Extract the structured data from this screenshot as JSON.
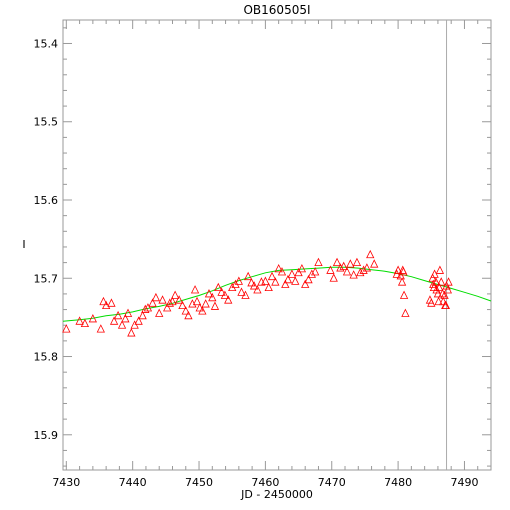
{
  "chart_data": {
    "type": "scatter",
    "title": "OB160505I",
    "xlabel": "JD - 2450000",
    "ylabel": "I",
    "xlim": [
      7429.5,
      7494
    ],
    "ylim": [
      15.945,
      15.37
    ],
    "y_inverted": true,
    "grid": false,
    "x_major_ticks": [
      7430,
      7440,
      7450,
      7460,
      7470,
      7480,
      7490
    ],
    "x_tick_labels": [
      "7430",
      "7440",
      "7450",
      "7460",
      "7470",
      "7480",
      "7490"
    ],
    "x_minor_step": 2,
    "y_major_ticks": [
      15.4,
      15.5,
      15.6,
      15.7,
      15.8,
      15.9
    ],
    "y_tick_labels": [
      "15.4",
      "15.5",
      "15.6",
      "15.7",
      "15.8",
      "15.9"
    ],
    "y_minor_step": 0.02,
    "vline_x": 7487.3,
    "series": [
      {
        "kind": "points",
        "marker": "triangle",
        "color": "#ff0000",
        "x": [
          7430.0,
          7432.0,
          7432.8,
          7434.0,
          7435.2,
          7435.6,
          7436.0,
          7436.8,
          7437.2,
          7437.8,
          7438.4,
          7438.9,
          7439.3,
          7439.8,
          7440.3,
          7440.9,
          7441.5,
          7441.9,
          7442.3,
          7443.0,
          7443.5,
          7444.0,
          7444.5,
          7445.2,
          7445.6,
          7446.0,
          7446.4,
          7447.0,
          7447.5,
          7448.0,
          7448.4,
          7449.0,
          7449.4,
          7449.7,
          7450.1,
          7450.5,
          7451.0,
          7451.5,
          7452.0,
          7452.4,
          7452.9,
          7453.4,
          7453.9,
          7454.4,
          7455.0,
          7455.5,
          7456.0,
          7456.4,
          7457.0,
          7457.4,
          7457.9,
          7458.3,
          7458.8,
          7459.4,
          7460.0,
          7460.5,
          7461.0,
          7461.5,
          7462.0,
          7462.5,
          7463.0,
          7463.4,
          7464.0,
          7464.5,
          7465.0,
          7465.5,
          7466.0,
          7466.5,
          7467.0,
          7467.5,
          7468.0,
          7469.8,
          7470.3,
          7470.8,
          7471.3,
          7471.8,
          7472.3,
          7472.8,
          7473.3,
          7473.8,
          7474.3,
          7474.8,
          7475.3,
          7475.8,
          7476.4,
          7479.8,
          7480.0,
          7480.4,
          7480.6,
          7480.9,
          7481.1,
          7480.8,
          7480.7,
          7484.8,
          7485.0,
          7485.2,
          7485.4,
          7485.5,
          7485.7,
          7485.8,
          7486.0,
          7486.2,
          7486.3,
          7486.5,
          7486.7,
          7486.8,
          7487.0,
          7487.1,
          7487.3,
          7487.5,
          7485.3,
          7486.1,
          7487.2,
          7487.6
        ],
        "y": [
          15.765,
          15.755,
          15.758,
          15.752,
          15.765,
          15.73,
          15.735,
          15.732,
          15.755,
          15.748,
          15.76,
          15.752,
          15.745,
          15.77,
          15.76,
          15.755,
          15.748,
          15.74,
          15.738,
          15.732,
          15.725,
          15.745,
          15.728,
          15.738,
          15.732,
          15.73,
          15.722,
          15.728,
          15.735,
          15.742,
          15.748,
          15.733,
          15.715,
          15.73,
          15.738,
          15.742,
          15.733,
          15.72,
          15.725,
          15.736,
          15.712,
          15.718,
          15.722,
          15.728,
          15.712,
          15.708,
          15.704,
          15.718,
          15.722,
          15.698,
          15.706,
          15.71,
          15.715,
          15.705,
          15.704,
          15.712,
          15.698,
          15.705,
          15.688,
          15.692,
          15.708,
          15.702,
          15.695,
          15.704,
          15.693,
          15.688,
          15.708,
          15.702,
          15.695,
          15.692,
          15.68,
          15.69,
          15.7,
          15.68,
          15.687,
          15.685,
          15.692,
          15.682,
          15.696,
          15.68,
          15.693,
          15.69,
          15.687,
          15.67,
          15.682,
          15.695,
          15.69,
          15.697,
          15.705,
          15.722,
          15.745,
          15.692,
          15.69,
          15.728,
          15.732,
          15.7,
          15.712,
          15.695,
          15.705,
          15.715,
          15.72,
          15.712,
          15.69,
          15.705,
          15.72,
          15.73,
          15.722,
          15.735,
          15.71,
          15.715,
          15.708,
          15.73,
          15.735,
          15.705
        ]
      },
      {
        "kind": "line",
        "color": "#00dd00",
        "x": [
          7429.5,
          7432,
          7434,
          7436,
          7438,
          7440,
          7442,
          7444,
          7446,
          7448,
          7450,
          7452,
          7454,
          7456,
          7458,
          7460,
          7462,
          7464,
          7466,
          7468,
          7470,
          7472,
          7474,
          7476,
          7478,
          7480,
          7482,
          7484,
          7486,
          7488,
          7490,
          7492,
          7494
        ],
        "y": [
          15.755,
          15.753,
          15.751,
          15.748,
          15.746,
          15.743,
          15.739,
          15.736,
          15.732,
          15.727,
          15.722,
          15.716,
          15.709,
          15.703,
          15.698,
          15.693,
          15.69,
          15.689,
          15.688,
          15.687,
          15.686,
          15.686,
          15.687,
          15.689,
          15.691,
          15.694,
          15.698,
          15.703,
          15.708,
          15.713,
          15.718,
          15.723,
          15.729
        ]
      }
    ]
  }
}
